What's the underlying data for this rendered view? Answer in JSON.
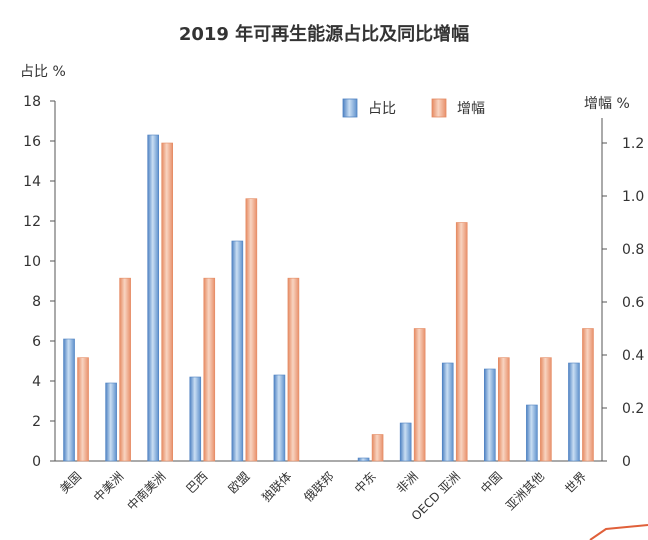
{
  "chart_data": {
    "type": "bar",
    "title": "2019 年可再生能源占比及同比增幅",
    "ylabel_left": "占比 %",
    "ylabel_right": "增幅 %",
    "categories": [
      "美国",
      "中美洲",
      "中南美洲",
      "巴西",
      "欧盟",
      "独联体",
      "俄联邦",
      "中东",
      "非洲",
      "OECD 亚洲",
      "中国",
      "亚洲其他",
      "世界"
    ],
    "series": [
      {
        "name": "占比",
        "axis": "left",
        "color": "#6f9fd3",
        "values": [
          6.1,
          3.9,
          16.3,
          4.2,
          11.0,
          4.3,
          0.0,
          0.15,
          1.9,
          4.9,
          4.6,
          2.8,
          4.9
        ]
      },
      {
        "name": "增幅",
        "axis": "right",
        "color": "#ec9f7d",
        "values": [
          0.39,
          0.69,
          1.2,
          0.69,
          0.99,
          0.69,
          0.0,
          0.1,
          0.5,
          0.9,
          0.39,
          0.39,
          0.5
        ]
      }
    ],
    "ylim_left": [
      0,
      18
    ],
    "yticks_left": [
      0,
      2,
      4,
      6,
      8,
      10,
      12,
      14,
      16,
      18
    ],
    "ylim_right": [
      0,
      1.4
    ],
    "yticks_right": [
      0,
      0.2,
      0.4,
      0.6,
      0.8,
      1.0,
      1.2
    ],
    "yticklabels_right": [
      "0",
      "0.2",
      "0.4",
      "0.6",
      "0.8",
      "1.0",
      "1.2"
    ],
    "legend": {
      "position": "top-right",
      "entries": [
        "占比",
        "增幅"
      ]
    },
    "grid": false
  }
}
